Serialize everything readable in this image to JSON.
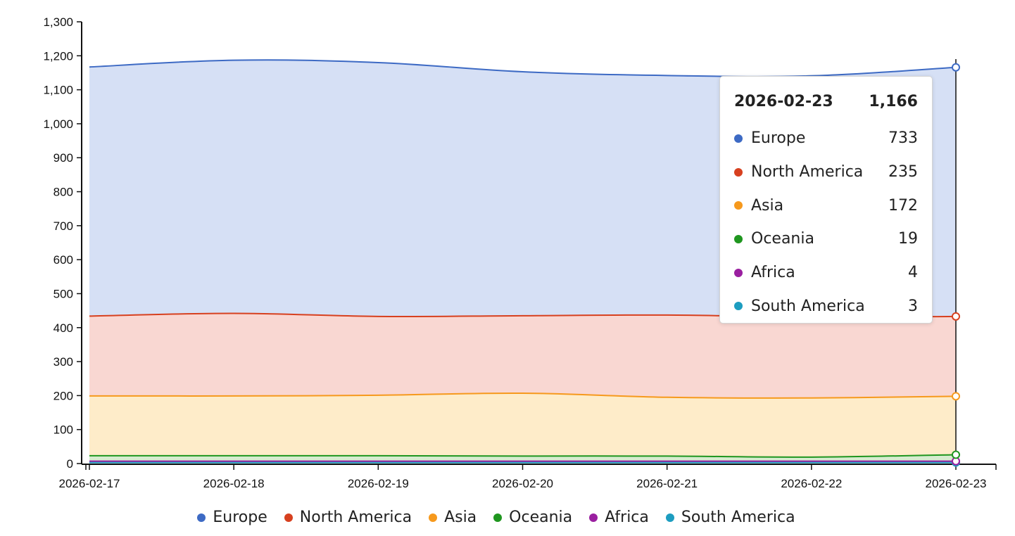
{
  "chart_data": {
    "type": "area",
    "stacked": true,
    "x": [
      "2026-02-17",
      "2026-02-18",
      "2026-02-19",
      "2026-02-20",
      "2026-02-21",
      "2026-02-22",
      "2026-02-23"
    ],
    "xlabel": "",
    "ylabel": "",
    "ylim": [
      0,
      1300
    ],
    "yticks": [
      0,
      100,
      200,
      300,
      400,
      500,
      600,
      700,
      800,
      900,
      1000,
      1100,
      1200,
      1300
    ],
    "ytick_labels": [
      "0",
      "100",
      "200",
      "300",
      "400",
      "500",
      "600",
      "700",
      "800",
      "900",
      "1,000",
      "1,100",
      "1,200",
      "1,300"
    ],
    "grid": false,
    "legend_position": "bottom",
    "series": [
      {
        "name": "Europe",
        "color": "#3d6ac4",
        "fill": "#d6e0f5",
        "values": [
          733,
          745,
          747,
          718,
          705,
          710,
          733
        ]
      },
      {
        "name": "North America",
        "color": "#d7401f",
        "fill": "#f9d7d2",
        "values": [
          235,
          243,
          232,
          228,
          242,
          238,
          235
        ]
      },
      {
        "name": "Asia",
        "color": "#f6991d",
        "fill": "#feecc9",
        "values": [
          176,
          176,
          178,
          185,
          173,
          174,
          172
        ]
      },
      {
        "name": "Oceania",
        "color": "#1f961f",
        "fill": "#d6eccf",
        "values": [
          16,
          16,
          16,
          15,
          15,
          12,
          19
        ]
      },
      {
        "name": "Africa",
        "color": "#9a1fa0",
        "fill": "#ead2eb",
        "values": [
          4,
          4,
          4,
          4,
          4,
          4,
          4
        ]
      },
      {
        "name": "South America",
        "color": "#1d9dc0",
        "fill": "#d1ebf2",
        "values": [
          3,
          3,
          3,
          3,
          3,
          3,
          3
        ]
      }
    ],
    "tooltip": {
      "date": "2026-02-23",
      "total": "1,166",
      "rows": [
        {
          "name": "Europe",
          "value": "733",
          "color": "#3d6ac4"
        },
        {
          "name": "North America",
          "value": "235",
          "color": "#d7401f"
        },
        {
          "name": "Asia",
          "value": "172",
          "color": "#f6991d"
        },
        {
          "name": "Oceania",
          "value": "19",
          "color": "#1f961f"
        },
        {
          "name": "Africa",
          "value": "4",
          "color": "#9a1fa0"
        },
        {
          "name": "South America",
          "value": "3",
          "color": "#1d9dc0"
        }
      ]
    }
  }
}
